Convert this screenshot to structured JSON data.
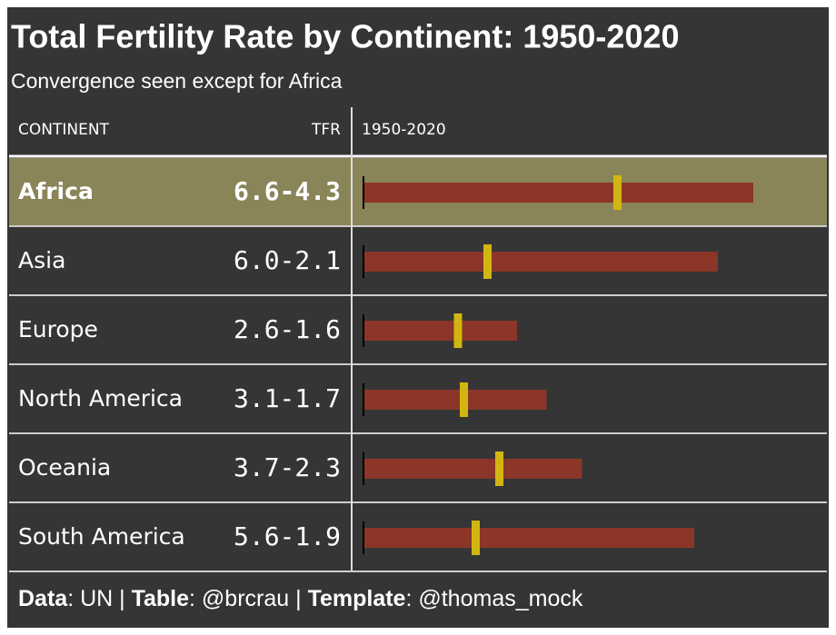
{
  "header": {
    "title": "Total Fertility Rate by Continent: 1950-2020",
    "subtitle": "Convergence seen except for Africa"
  },
  "table": {
    "columns": [
      "CONTINENT",
      "TFR",
      "1950-2020"
    ],
    "xlim": [
      0,
      8
    ],
    "bar_color": "#8b3628",
    "marker_color": "#d1b612",
    "highlight_color": "#8a8459",
    "rows": [
      {
        "continent": "Africa",
        "tfr_label": "6.6-4.3",
        "tfr_1950": 6.6,
        "tfr_2020": 4.3,
        "highlight": true
      },
      {
        "continent": "Asia",
        "tfr_label": "6.0-2.1",
        "tfr_1950": 6.0,
        "tfr_2020": 2.1
      },
      {
        "continent": "Europe",
        "tfr_label": "2.6-1.6",
        "tfr_1950": 2.6,
        "tfr_2020": 1.6
      },
      {
        "continent": "North America",
        "tfr_label": "3.1-1.7",
        "tfr_1950": 3.1,
        "tfr_2020": 1.7
      },
      {
        "continent": "Oceania",
        "tfr_label": "3.7-2.3",
        "tfr_1950": 3.7,
        "tfr_2020": 2.3
      },
      {
        "continent": "South America",
        "tfr_label": "5.6-1.9",
        "tfr_1950": 5.6,
        "tfr_2020": 1.9
      }
    ]
  },
  "footer": [
    "Data",
    ": UN | ",
    "Table",
    ": @brcrau | ",
    "Template",
    ": @thomas_mock"
  ]
}
